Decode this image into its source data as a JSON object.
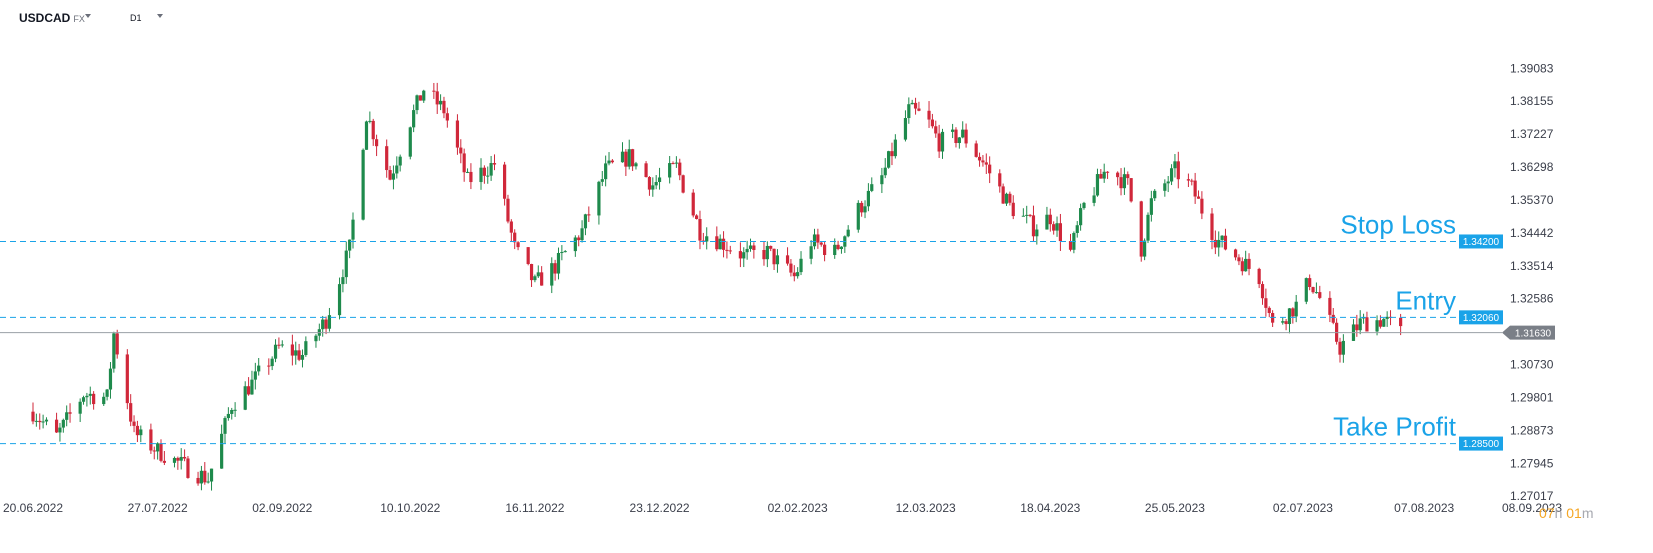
{
  "toolbar": {
    "symbol": "USDCAD",
    "market": "FX",
    "timeframe": "D1"
  },
  "countdown": {
    "hours": "07",
    "hours_unit": "h",
    "minutes": "01",
    "minutes_unit": "m"
  },
  "colors": {
    "up": "#1e8a4c",
    "down": "#d0273a",
    "level": "#1aa3e8",
    "current": "#9aa0a6",
    "current_badge": "#7a7f87"
  },
  "chart_data": {
    "type": "candlestick",
    "instrument": "USDCAD",
    "timeframe": "D1",
    "ylim": [
      1.2705,
      1.396
    ],
    "y_ticks": [
      "1.39083",
      "1.38155",
      "1.37227",
      "1.36298",
      "1.35370",
      "1.34442",
      "1.33514",
      "1.32586",
      "1.30730",
      "1.29801",
      "1.28873",
      "1.27945",
      "1.27017"
    ],
    "x_ticks": [
      "20.06.2022",
      "27.07.2022",
      "02.09.2022",
      "10.10.2022",
      "16.11.2022",
      "23.12.2022",
      "02.02.2023",
      "12.03.2023",
      "18.04.2023",
      "25.05.2023",
      "02.07.2023",
      "07.08.2023",
      "08.09.2023"
    ],
    "x_range": [
      "2022-06-20",
      "2023-09-08"
    ],
    "current_price": "1.31630",
    "levels": [
      {
        "name": "Stop Loss",
        "price": "1.34200",
        "value": 1.342
      },
      {
        "name": "Entry",
        "price": "1.32060",
        "value": 1.3206
      },
      {
        "name": "Take Profit",
        "price": "1.28500",
        "value": 1.285
      }
    ],
    "price_path": [
      [
        "2022-06-20",
        1.294
      ],
      [
        "2022-06-27",
        1.287
      ],
      [
        "2022-07-05",
        1.299
      ],
      [
        "2022-07-12",
        1.298
      ],
      [
        "2022-07-14",
        1.316
      ],
      [
        "2022-07-20",
        1.288
      ],
      [
        "2022-07-27",
        1.283
      ],
      [
        "2022-08-05",
        1.278
      ],
      [
        "2022-08-11",
        1.275
      ],
      [
        "2022-08-18",
        1.296
      ],
      [
        "2022-08-24",
        1.302
      ],
      [
        "2022-09-01",
        1.312
      ],
      [
        "2022-09-08",
        1.31
      ],
      [
        "2022-09-15",
        1.32
      ],
      [
        "2022-09-22",
        1.34
      ],
      [
        "2022-09-27",
        1.378
      ],
      [
        "2022-10-04",
        1.36
      ],
      [
        "2022-10-10",
        1.376
      ],
      [
        "2022-10-14",
        1.385
      ],
      [
        "2022-10-20",
        1.379
      ],
      [
        "2022-10-27",
        1.359
      ],
      [
        "2022-11-04",
        1.364
      ],
      [
        "2022-11-10",
        1.34
      ],
      [
        "2022-11-16",
        1.33
      ],
      [
        "2022-11-22",
        1.335
      ],
      [
        "2022-11-30",
        1.345
      ],
      [
        "2022-12-07",
        1.362
      ],
      [
        "2022-12-14",
        1.366
      ],
      [
        "2022-12-21",
        1.358
      ],
      [
        "2022-12-28",
        1.363
      ],
      [
        "2023-01-04",
        1.345
      ],
      [
        "2023-01-10",
        1.342
      ],
      [
        "2023-01-17",
        1.338
      ],
      [
        "2023-01-24",
        1.339
      ],
      [
        "2023-02-01",
        1.332
      ],
      [
        "2023-02-06",
        1.342
      ],
      [
        "2023-02-13",
        1.339
      ],
      [
        "2023-02-20",
        1.351
      ],
      [
        "2023-02-27",
        1.36
      ],
      [
        "2023-03-07",
        1.379
      ],
      [
        "2023-03-12",
        1.377
      ],
      [
        "2023-03-16",
        1.37
      ],
      [
        "2023-03-23",
        1.372
      ],
      [
        "2023-03-30",
        1.363
      ],
      [
        "2023-04-06",
        1.352
      ],
      [
        "2023-04-13",
        1.346
      ],
      [
        "2023-04-18",
        1.349
      ],
      [
        "2023-04-24",
        1.339
      ],
      [
        "2023-04-28",
        1.352
      ],
      [
        "2023-05-05",
        1.363
      ],
      [
        "2023-05-11",
        1.358
      ],
      [
        "2023-05-15",
        1.34
      ],
      [
        "2023-05-18",
        1.353
      ],
      [
        "2023-05-25",
        1.362
      ],
      [
        "2023-05-30",
        1.357
      ],
      [
        "2023-06-06",
        1.343
      ],
      [
        "2023-06-12",
        1.338
      ],
      [
        "2023-06-19",
        1.332
      ],
      [
        "2023-06-23",
        1.318
      ],
      [
        "2023-06-30",
        1.324
      ],
      [
        "2023-07-04",
        1.331
      ],
      [
        "2023-07-07",
        1.326
      ],
      [
        "2023-07-13",
        1.312
      ],
      [
        "2023-07-19",
        1.319
      ],
      [
        "2023-07-26",
        1.32
      ],
      [
        "2023-07-31",
        1.3163
      ]
    ]
  }
}
